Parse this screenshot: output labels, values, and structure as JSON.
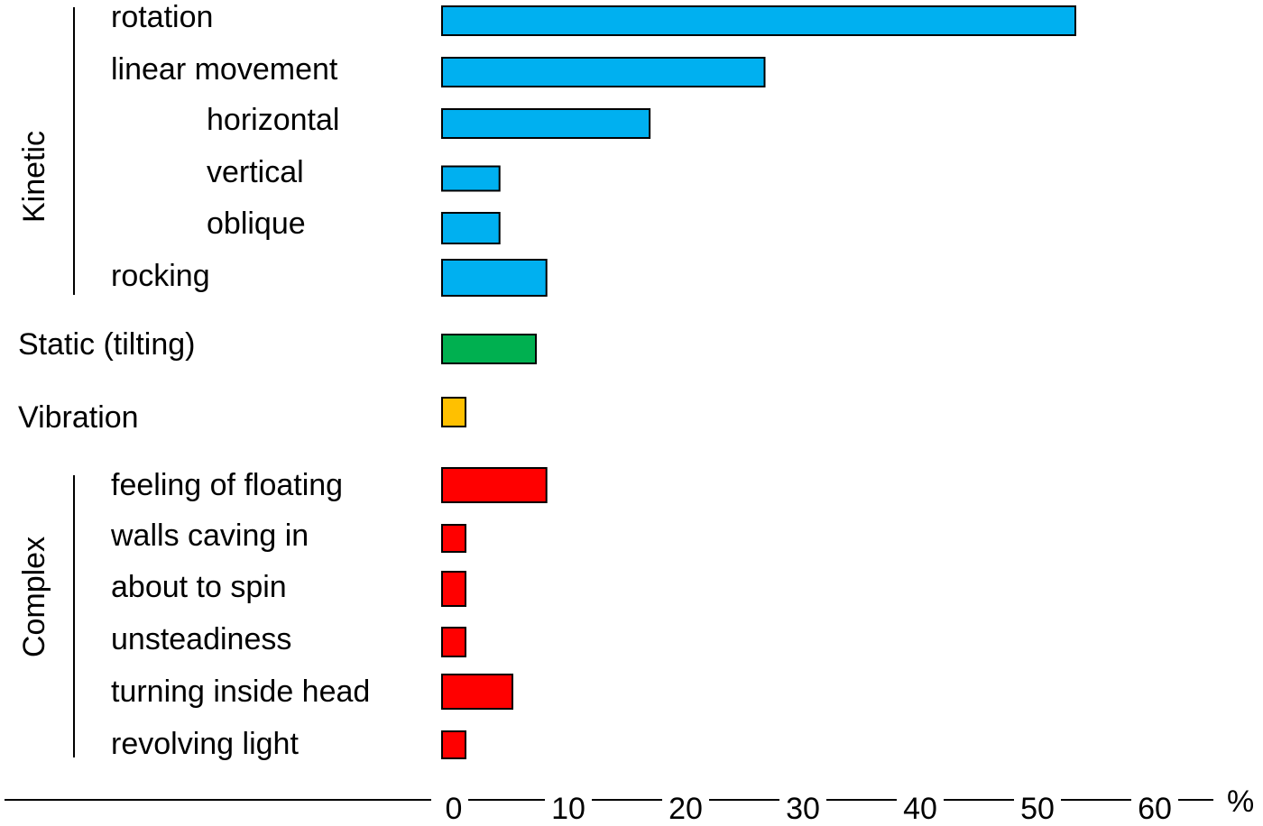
{
  "chart_data": {
    "type": "bar",
    "orientation": "horizontal",
    "unit": "%",
    "xlim": [
      0,
      60
    ],
    "ticks": [
      0,
      10,
      20,
      30,
      40,
      50,
      60
    ],
    "grid": false,
    "groups": [
      {
        "label": "Kinetic",
        "color": "#00B0F0",
        "items": [
          {
            "label": "rotation",
            "value": 54,
            "indent": 0
          },
          {
            "label": "linear movement",
            "value": 27.5,
            "indent": 0
          },
          {
            "label": "horizontal",
            "value": 17.7,
            "indent": 1
          },
          {
            "label": "vertical",
            "value": 4.9,
            "indent": 1
          },
          {
            "label": "oblique",
            "value": 4.9,
            "indent": 1
          },
          {
            "label": "rocking",
            "value": 8.9,
            "indent": 0
          }
        ]
      },
      {
        "label": "",
        "color": "#00B050",
        "items": [
          {
            "label": "Static (tilting)",
            "value": 8,
            "indent": -1
          }
        ]
      },
      {
        "label": "",
        "color": "#FFC000",
        "items": [
          {
            "label": "Vibration",
            "value": 2,
            "indent": -1
          }
        ]
      },
      {
        "label": "Complex",
        "color": "#FF0000",
        "items": [
          {
            "label": "feeling of floating",
            "value": 8.9,
            "indent": 0
          },
          {
            "label": "walls caving in",
            "value": 2,
            "indent": 0
          },
          {
            "label": "about to spin",
            "value": 2,
            "indent": 0
          },
          {
            "label": "unsteadiness",
            "value": 2,
            "indent": 0
          },
          {
            "label": "turning inside head",
            "value": 6,
            "indent": 0
          },
          {
            "label": "revolving light",
            "value": 2,
            "indent": 0
          }
        ]
      }
    ]
  }
}
